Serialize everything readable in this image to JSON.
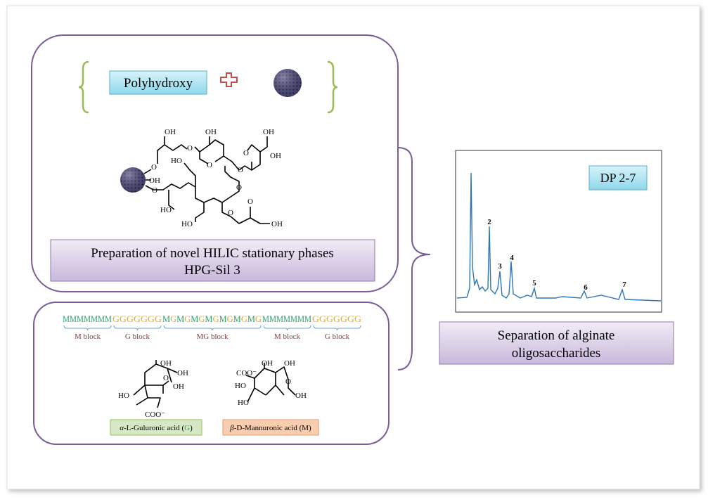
{
  "top_panel": {
    "polyhydroxy": "Polyhydroxy",
    "structure_labels": [
      "OH",
      "OH",
      "OH",
      "O",
      "O",
      "OH",
      "HO",
      "O",
      "O",
      "O",
      "OH",
      "O",
      "O",
      "HO",
      "O",
      "O",
      "HO",
      "OH"
    ],
    "caption": [
      "Preparation of novel HILIC stationary phases",
      "HPG-Sil 3"
    ]
  },
  "bottom_panel": {
    "sequence": [
      "MMMMMMM",
      "GGGGGGG",
      "MGMGMGMGMGMGMG",
      "MMMMMMM",
      "GGGGGGG"
    ],
    "blocks": [
      "M block",
      "G block",
      "MG block",
      "M block",
      "G block"
    ],
    "guluronic_labels": [
      "OH",
      "OH",
      "O",
      "OH",
      "HO",
      "COO⁻"
    ],
    "mannuronic_labels": [
      "COO⁻",
      "OH",
      "OH",
      "O",
      "HO",
      "HO",
      "OH"
    ],
    "guluronic_name": [
      "α",
      "-L-Guluronic acid (",
      "G",
      ")"
    ],
    "mannuronic_name": [
      "β",
      "-D-Mannuronic acid (M)"
    ]
  },
  "chromatogram": {
    "badge": "DP 2-7",
    "peak_labels": [
      "2",
      "3",
      "4",
      "5",
      "6",
      "7"
    ],
    "caption": [
      "Separation of alginate",
      "oligosaccharides"
    ]
  }
}
